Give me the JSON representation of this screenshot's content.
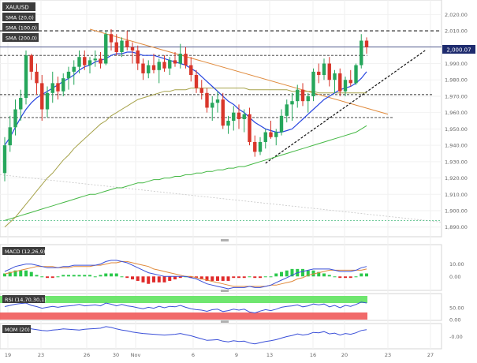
{
  "chart_data": [
    {
      "type": "candlestick",
      "symbol": "XAUUSD",
      "indicators": [
        {
          "label": "SMA (20,0)",
          "color": "#2846e0"
        },
        {
          "label": "SMA (100,0)",
          "color": "#a6a24a"
        },
        {
          "label": "SMA (200,0)",
          "color": "#44b844"
        }
      ],
      "last_price": "2,000.07",
      "x_tick_labels": [
        "19",
        "23",
        "26",
        "30",
        "Nov",
        "6",
        "9",
        "13",
        "16",
        "20",
        "23",
        "27"
      ],
      "y_tick_labels": [
        "2,020.00",
        "2,010.00",
        "2,000.00",
        "1,990.00",
        "1,980.00",
        "1,970.00",
        "1,960.00",
        "1,950.00",
        "1,940.00",
        "1,930.00",
        "1,920.00",
        "1,910.00",
        "1,900.00",
        "1,890.00"
      ],
      "ylim": [
        1886,
        2025
      ],
      "horizontal_levels": [
        2010,
        1995,
        1971,
        1957
      ],
      "candles": [
        [
          1923,
          1945,
          1918,
          1940
        ],
        [
          1940,
          1958,
          1936,
          1951
        ],
        [
          1951,
          1968,
          1946,
          1962
        ],
        [
          1962,
          1974,
          1955,
          1969
        ],
        [
          1969,
          1998,
          1965,
          1995
        ],
        [
          1995,
          1996,
          1980,
          1985
        ],
        [
          1985,
          1990,
          1971,
          1978
        ],
        [
          1978,
          1983,
          1955,
          1962
        ],
        [
          1962,
          1976,
          1957,
          1972
        ],
        [
          1972,
          1985,
          1966,
          1978
        ],
        [
          1978,
          1982,
          1968,
          1973
        ],
        [
          1973,
          1984,
          1970,
          1981
        ],
        [
          1981,
          1988,
          1974,
          1985
        ],
        [
          1985,
          1992,
          1977,
          1988
        ],
        [
          1988,
          1998,
          1984,
          1994
        ],
        [
          1994,
          1998,
          1986,
          1989
        ],
        [
          1989,
          1994,
          1984,
          1992
        ],
        [
          1992,
          1998,
          1988,
          1993
        ],
        [
          1993,
          1997,
          1987,
          1990
        ],
        [
          1990,
          2010,
          1989,
          2008
        ],
        [
          2008,
          2011,
          1998,
          2003
        ],
        [
          2003,
          2008,
          1995,
          1997
        ],
        [
          1997,
          2006,
          1994,
          2004
        ],
        [
          2004,
          2010,
          1998,
          2000
        ],
        [
          2000,
          2003,
          1990,
          1998
        ],
        [
          1998,
          2001,
          1986,
          1990
        ],
        [
          1990,
          1993,
          1980,
          1984
        ],
        [
          1984,
          1992,
          1981,
          1989
        ],
        [
          1989,
          1996,
          1984,
          1986
        ],
        [
          1986,
          1993,
          1978,
          1991
        ],
        [
          1991,
          1995,
          1985,
          1987
        ],
        [
          1987,
          1994,
          1983,
          1992
        ],
        [
          1992,
          1997,
          1988,
          1990
        ],
        [
          1990,
          2002,
          1987,
          1996
        ],
        [
          1996,
          2000,
          1987,
          1989
        ],
        [
          1989,
          1994,
          1979,
          1983
        ],
        [
          1983,
          1986,
          1972,
          1975
        ],
        [
          1975,
          1980,
          1968,
          1972
        ],
        [
          1972,
          1975,
          1960,
          1963
        ],
        [
          1963,
          1970,
          1955,
          1966
        ],
        [
          1966,
          1973,
          1960,
          1968
        ],
        [
          1968,
          1972,
          1950,
          1952
        ],
        [
          1952,
          1958,
          1947,
          1955
        ],
        [
          1955,
          1964,
          1949,
          1960
        ],
        [
          1960,
          1965,
          1950,
          1956
        ],
        [
          1956,
          1962,
          1948,
          1959
        ],
        [
          1959,
          1963,
          1940,
          1942
        ],
        [
          1942,
          1946,
          1933,
          1936
        ],
        [
          1936,
          1945,
          1934,
          1942
        ],
        [
          1942,
          1950,
          1938,
          1948
        ],
        [
          1948,
          1955,
          1944,
          1945
        ],
        [
          1945,
          1950,
          1940,
          1948
        ],
        [
          1948,
          1962,
          1946,
          1958
        ],
        [
          1958,
          1968,
          1954,
          1965
        ],
        [
          1965,
          1972,
          1955,
          1967
        ],
        [
          1967,
          1977,
          1963,
          1974
        ],
        [
          1974,
          1978,
          1964,
          1967
        ],
        [
          1967,
          1972,
          1960,
          1970
        ],
        [
          1970,
          1987,
          1967,
          1985
        ],
        [
          1985,
          1990,
          1978,
          1983
        ],
        [
          1983,
          1993,
          1980,
          1990
        ],
        [
          1990,
          1994,
          1976,
          1980
        ],
        [
          1980,
          1986,
          1972,
          1984
        ],
        [
          1984,
          1987,
          1970,
          1973
        ],
        [
          1973,
          1982,
          1970,
          1980
        ],
        [
          1980,
          1986,
          1976,
          1978
        ],
        [
          1978,
          1990,
          1977,
          1989
        ],
        [
          1989,
          2008,
          1987,
          2004
        ],
        [
          2004,
          2006,
          1996,
          2000
        ]
      ],
      "sma20": [
        1940,
        1945,
        1951,
        1957,
        1962,
        1966,
        1969,
        1971,
        1973,
        1975,
        1977,
        1979,
        1981,
        1983,
        1986,
        1988,
        1989,
        1991,
        1992,
        1993,
        1995,
        1996,
        1996,
        1997,
        1997,
        1996,
        1995,
        1995,
        1995,
        1994,
        1993,
        1992,
        1991,
        1990,
        1989,
        1987,
        1985,
        1982,
        1979,
        1976,
        1973,
        1970,
        1967,
        1965,
        1962,
        1960,
        1957,
        1954,
        1952,
        1950,
        1949,
        1948,
        1948,
        1949,
        1950,
        1953,
        1956,
        1959,
        1962,
        1965,
        1968,
        1970,
        1972,
        1974,
        1975,
        1976,
        1978,
        1981,
        1985
      ],
      "sma100": [
        1890,
        1893,
        1896,
        1900,
        1904,
        1908,
        1912,
        1916,
        1920,
        1923,
        1927,
        1931,
        1934,
        1938,
        1941,
        1944,
        1947,
        1950,
        1953,
        1955,
        1958,
        1960,
        1962,
        1964,
        1966,
        1968,
        1969,
        1970,
        1971,
        1972,
        1973,
        1973,
        1974,
        1974,
        1974,
        1975,
        1975,
        1975,
        1975,
        1975,
        1975,
        1975,
        1975,
        1975,
        1975,
        1975,
        1974,
        1974,
        1974,
        1974,
        1974,
        1974,
        1974,
        1974,
        1973,
        1973,
        1973,
        1973,
        1973,
        1972,
        1972,
        1972,
        1972,
        1972,
        1972,
        1972,
        1972,
        1972,
        1972
      ],
      "sma200": [
        1894,
        1895,
        1896,
        1897,
        1898,
        1899,
        1900,
        1901,
        1902,
        1903,
        1904,
        1905,
        1906,
        1907,
        1908,
        1909,
        1910,
        1910,
        1911,
        1912,
        1913,
        1914,
        1914,
        1915,
        1916,
        1917,
        1917,
        1918,
        1919,
        1919,
        1920,
        1920,
        1921,
        1921,
        1922,
        1922,
        1923,
        1923,
        1924,
        1924,
        1925,
        1925,
        1926,
        1926,
        1927,
        1927,
        1928,
        1929,
        1930,
        1931,
        1932,
        1933,
        1934,
        1935,
        1936,
        1937,
        1938,
        1939,
        1940,
        1941,
        1942,
        1943,
        1944,
        1945,
        1946,
        1947,
        1948,
        1950,
        1952
      ]
    },
    {
      "type": "line",
      "name": "MACD (12,26,9)",
      "y_tick_labels": [
        "10.00",
        "0.00"
      ],
      "ylim": [
        -10,
        18
      ],
      "macd": [
        4,
        6,
        8,
        9,
        10,
        10,
        9,
        8,
        7,
        7,
        7,
        8,
        8,
        9,
        9,
        9,
        9,
        9,
        10,
        12,
        13,
        13,
        12,
        11,
        9,
        7,
        5,
        3,
        2,
        1,
        0,
        0,
        0,
        0,
        0,
        -1,
        -2,
        -4,
        -6,
        -7,
        -8,
        -9,
        -10,
        -9,
        -9,
        -9,
        -8,
        -9,
        -9,
        -8,
        -7,
        -5,
        -3,
        -1,
        1,
        3,
        4,
        5,
        6,
        6,
        6,
        6,
        5,
        4,
        4,
        4,
        5,
        7,
        8
      ],
      "signal": [
        2,
        3,
        4,
        5,
        6,
        7,
        8,
        8,
        8,
        8,
        7,
        7,
        7,
        8,
        8,
        8,
        8,
        9,
        9,
        10,
        11,
        11,
        12,
        12,
        11,
        10,
        9,
        8,
        6,
        5,
        4,
        3,
        2,
        1,
        0,
        0,
        -1,
        -2,
        -3,
        -4,
        -5,
        -6,
        -7,
        -8,
        -8,
        -8,
        -8,
        -8,
        -8,
        -8,
        -7,
        -7,
        -6,
        -5,
        -4,
        -2,
        -1,
        1,
        2,
        3,
        4,
        5,
        5,
        5,
        5,
        5,
        5,
        5,
        6
      ]
    },
    {
      "type": "line",
      "name": "RSI (14,70,30,1)",
      "y_tick_labels": [
        "50.00",
        "0.00"
      ],
      "ylim": [
        0,
        100
      ],
      "values": [
        55,
        60,
        65,
        68,
        70,
        60,
        55,
        48,
        52,
        56,
        52,
        56,
        58,
        60,
        64,
        58,
        60,
        62,
        58,
        70,
        65,
        58,
        64,
        58,
        55,
        50,
        46,
        52,
        48,
        56,
        50,
        56,
        54,
        60,
        52,
        46,
        42,
        40,
        35,
        42,
        44,
        34,
        38,
        44,
        40,
        44,
        32,
        28,
        36,
        42,
        38,
        44,
        52,
        56,
        58,
        62,
        54,
        58,
        66,
        62,
        66,
        54,
        60,
        50,
        60,
        56,
        64,
        74,
        70
      ]
    },
    {
      "type": "line",
      "name": "MOM (20)",
      "y_tick_labels": [
        "-0.00"
      ],
      "ylim": [
        -60,
        60
      ],
      "values": [
        40,
        44,
        48,
        46,
        44,
        40,
        36,
        32,
        30,
        34,
        36,
        40,
        38,
        36,
        34,
        38,
        40,
        42,
        44,
        52,
        48,
        40,
        34,
        30,
        24,
        20,
        16,
        14,
        12,
        10,
        8,
        10,
        12,
        16,
        10,
        4,
        -4,
        -12,
        -20,
        -18,
        -16,
        -24,
        -28,
        -22,
        -26,
        -24,
        -34,
        -38,
        -32,
        -26,
        -22,
        -16,
        -8,
        0,
        6,
        14,
        8,
        12,
        22,
        20,
        26,
        14,
        18,
        8,
        16,
        12,
        20,
        32,
        36
      ]
    }
  ]
}
